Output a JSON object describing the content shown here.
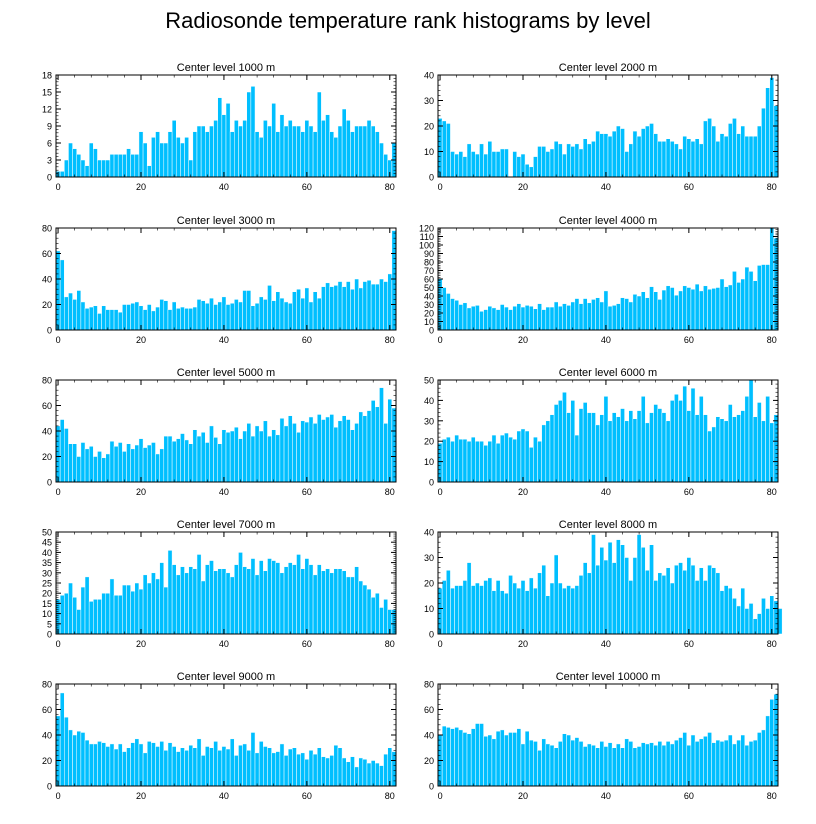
{
  "title": "Radiosonde temperature rank histograms by level",
  "colors": {
    "bar": "#00bfff",
    "bar_edge": "#ffffff",
    "axis": "#000000",
    "text": "#000000"
  },
  "chart_data": [
    {
      "type": "bar",
      "title": "Center level 1000 m",
      "xlim": [
        -0.5,
        81.5
      ],
      "ylim": [
        0,
        18
      ],
      "xticks": [
        0,
        20,
        40,
        60,
        80
      ],
      "yticks": [
        0,
        3,
        6,
        9,
        12,
        15,
        18
      ],
      "values": [
        1,
        1,
        3,
        6,
        5,
        4,
        3,
        2,
        6,
        5,
        3,
        3,
        3,
        4,
        4,
        4,
        4,
        5,
        4,
        4,
        8,
        6,
        2,
        7,
        8,
        6,
        6,
        8,
        10,
        7,
        6,
        7,
        3,
        8,
        9,
        9,
        8,
        9,
        10,
        14,
        11,
        13,
        8,
        10,
        9,
        10,
        15,
        16,
        8,
        7,
        10,
        9,
        13,
        8,
        11,
        9,
        10,
        9,
        9,
        8,
        10,
        9,
        8,
        15,
        10,
        11,
        8,
        7,
        9,
        12,
        10,
        8,
        9,
        9,
        9,
        10,
        9,
        8,
        6,
        4,
        3,
        6
      ],
      "xlabel": "",
      "ylabel": ""
    },
    {
      "type": "bar",
      "title": "Center level 2000 m",
      "xlim": [
        -0.5,
        81.5
      ],
      "ylim": [
        0,
        40
      ],
      "xticks": [
        0,
        20,
        40,
        60,
        80
      ],
      "yticks": [
        0,
        10,
        20,
        30,
        40
      ],
      "values": [
        23,
        22,
        21,
        10,
        9,
        10,
        8,
        13,
        10,
        9,
        13,
        9,
        14,
        10,
        10,
        11,
        11,
        0,
        10,
        8,
        9,
        5,
        4,
        8,
        12,
        12,
        10,
        11,
        14,
        13,
        9,
        13,
        12,
        13,
        11,
        15,
        13,
        14,
        18,
        17,
        17,
        16,
        18,
        20,
        19,
        10,
        13,
        18,
        16,
        19,
        20,
        21,
        17,
        14,
        14,
        15,
        14,
        13,
        11,
        16,
        15,
        14,
        15,
        13,
        22,
        23,
        20,
        14,
        17,
        16,
        21,
        23,
        17,
        20,
        16,
        16,
        16,
        20,
        27,
        35,
        39,
        28
      ],
      "xlabel": "",
      "ylabel": ""
    },
    {
      "type": "bar",
      "title": "Center level 3000 m",
      "xlim": [
        -0.5,
        81.5
      ],
      "ylim": [
        0,
        80
      ],
      "xticks": [
        0,
        20,
        40,
        60,
        80
      ],
      "yticks": [
        0,
        20,
        40,
        60,
        80
      ],
      "values": [
        62,
        55,
        26,
        29,
        24,
        31,
        22,
        17,
        18,
        19,
        13,
        19,
        16,
        16,
        16,
        14,
        20,
        20,
        21,
        22,
        19,
        16,
        20,
        15,
        18,
        24,
        23,
        16,
        22,
        17,
        18,
        17,
        17,
        18,
        24,
        23,
        21,
        25,
        20,
        22,
        26,
        20,
        21,
        24,
        22,
        31,
        31,
        19,
        21,
        26,
        24,
        35,
        23,
        30,
        25,
        22,
        21,
        30,
        32,
        25,
        33,
        22,
        30,
        25,
        34,
        37,
        34,
        35,
        38,
        34,
        38,
        32,
        40,
        33,
        38,
        39,
        36,
        36,
        40,
        38,
        44,
        78
      ],
      "xlabel": "",
      "ylabel": ""
    },
    {
      "type": "bar",
      "title": "Center level 4000 m",
      "xlim": [
        -0.5,
        81.5
      ],
      "ylim": [
        0,
        120
      ],
      "xticks": [
        0,
        20,
        40,
        60,
        80
      ],
      "yticks": [
        0,
        10,
        20,
        30,
        40,
        50,
        60,
        70,
        80,
        90,
        100,
        110,
        120
      ],
      "values": [
        60,
        50,
        43,
        37,
        35,
        30,
        32,
        26,
        28,
        29,
        22,
        24,
        28,
        26,
        24,
        30,
        27,
        24,
        28,
        31,
        27,
        29,
        28,
        25,
        31,
        24,
        27,
        27,
        33,
        28,
        31,
        29,
        33,
        37,
        31,
        37,
        32,
        36,
        38,
        33,
        46,
        28,
        29,
        31,
        38,
        37,
        33,
        42,
        40,
        45,
        38,
        51,
        45,
        36,
        47,
        52,
        50,
        41,
        46,
        52,
        50,
        48,
        54,
        46,
        52,
        48,
        49,
        50,
        60,
        51,
        53,
        69,
        56,
        60,
        74,
        69,
        58,
        76,
        77,
        77,
        120,
        108
      ],
      "xlabel": "",
      "ylabel": ""
    },
    {
      "type": "bar",
      "title": "Center level 5000 m",
      "xlim": [
        -0.5,
        81.5
      ],
      "ylim": [
        0,
        80
      ],
      "xticks": [
        0,
        20,
        40,
        60,
        80
      ],
      "yticks": [
        0,
        20,
        40,
        60,
        80
      ],
      "values": [
        44,
        49,
        42,
        30,
        30,
        20,
        31,
        26,
        28,
        20,
        24,
        19,
        22,
        32,
        28,
        31,
        24,
        30,
        26,
        29,
        34,
        27,
        29,
        31,
        22,
        26,
        36,
        36,
        32,
        34,
        38,
        33,
        30,
        41,
        36,
        39,
        31,
        44,
        35,
        30,
        41,
        39,
        40,
        43,
        34,
        40,
        46,
        36,
        44,
        40,
        48,
        36,
        41,
        37,
        50,
        44,
        52,
        46,
        39,
        48,
        47,
        51,
        46,
        53,
        49,
        51,
        53,
        43,
        48,
        52,
        49,
        41,
        46,
        55,
        52,
        56,
        64,
        59,
        74,
        46,
        65,
        58
      ],
      "xlabel": "",
      "ylabel": ""
    },
    {
      "type": "bar",
      "title": "Center level 6000 m",
      "xlim": [
        -0.5,
        81.5
      ],
      "ylim": [
        0,
        50
      ],
      "xticks": [
        0,
        20,
        40,
        60,
        80
      ],
      "yticks": [
        0,
        10,
        20,
        30,
        40,
        50
      ],
      "values": [
        19,
        21,
        22,
        20,
        23,
        21,
        21,
        20,
        22,
        20,
        20,
        18,
        20,
        23,
        19,
        23,
        24,
        22,
        21,
        25,
        26,
        25,
        17,
        22,
        20,
        28,
        30,
        33,
        38,
        40,
        44,
        34,
        40,
        23,
        36,
        39,
        34,
        34,
        28,
        33,
        42,
        30,
        34,
        32,
        36,
        30,
        35,
        31,
        35,
        42,
        29,
        34,
        38,
        36,
        34,
        30,
        40,
        43,
        40,
        47,
        35,
        46,
        33,
        42,
        33,
        25,
        27,
        32,
        31,
        30,
        38,
        32,
        33,
        35,
        42,
        50,
        32,
        39,
        30,
        42,
        29,
        33
      ],
      "xlabel": "",
      "ylabel": ""
    },
    {
      "type": "bar",
      "title": "Center level 7000 m",
      "xlim": [
        -0.5,
        81.5
      ],
      "ylim": [
        0,
        50
      ],
      "xticks": [
        0,
        20,
        40,
        60,
        80
      ],
      "yticks": [
        0,
        5,
        10,
        15,
        20,
        25,
        30,
        35,
        40,
        45,
        50
      ],
      "values": [
        17,
        19,
        20,
        25,
        18,
        12,
        23,
        28,
        16,
        17,
        17,
        20,
        20,
        27,
        19,
        19,
        24,
        24,
        21,
        25,
        22,
        29,
        25,
        30,
        27,
        35,
        23,
        41,
        34,
        29,
        33,
        30,
        33,
        32,
        39,
        26,
        34,
        36,
        31,
        32,
        32,
        30,
        28,
        34,
        40,
        33,
        32,
        37,
        29,
        36,
        31,
        37,
        36,
        35,
        30,
        33,
        35,
        34,
        39,
        32,
        37,
        34,
        29,
        34,
        31,
        32,
        30,
        32,
        32,
        31,
        28,
        28,
        33,
        26,
        24,
        22,
        18,
        20,
        13,
        17,
        12,
        12
      ],
      "xlabel": "",
      "ylabel": ""
    },
    {
      "type": "bar",
      "title": "Center level 8000 m",
      "xlim": [
        -0.5,
        81.5
      ],
      "ylim": [
        0,
        40
      ],
      "xticks": [
        0,
        20,
        40,
        60,
        80
      ],
      "yticks": [
        0,
        10,
        20,
        30,
        40
      ],
      "values": [
        18,
        21,
        25,
        18,
        19,
        19,
        21,
        28,
        19,
        20,
        19,
        21,
        22,
        17,
        21,
        17,
        16,
        23,
        20,
        18,
        21,
        17,
        22,
        18,
        24,
        27,
        15,
        20,
        31,
        20,
        18,
        19,
        18,
        19,
        23,
        28,
        24,
        39,
        27,
        34,
        29,
        36,
        28,
        37,
        35,
        30,
        21,
        30,
        39,
        34,
        25,
        35,
        21,
        24,
        23,
        26,
        20,
        27,
        28,
        25,
        30,
        27,
        21,
        26,
        21,
        27,
        26,
        24,
        17,
        19,
        18,
        14,
        11,
        18,
        10,
        12,
        6,
        8,
        14,
        10,
        15,
        13,
        10
      ],
      "xlabel": "",
      "ylabel": ""
    },
    {
      "type": "bar",
      "title": "Center level 9000 m",
      "xlim": [
        -0.5,
        81.5
      ],
      "ylim": [
        0,
        80
      ],
      "xticks": [
        0,
        20,
        40,
        60,
        80
      ],
      "yticks": [
        0,
        20,
        40,
        60,
        80
      ],
      "values": [
        55,
        73,
        54,
        44,
        40,
        43,
        42,
        36,
        33,
        33,
        35,
        34,
        31,
        33,
        29,
        33,
        27,
        30,
        34,
        37,
        33,
        26,
        35,
        34,
        31,
        35,
        28,
        34,
        31,
        27,
        30,
        28,
        32,
        30,
        37,
        24,
        31,
        30,
        35,
        28,
        31,
        29,
        37,
        24,
        32,
        33,
        28,
        42,
        26,
        35,
        31,
        30,
        26,
        27,
        33,
        24,
        29,
        30,
        25,
        26,
        21,
        28,
        25,
        30,
        23,
        22,
        24,
        32,
        30,
        22,
        19,
        23,
        15,
        22,
        21,
        18,
        20,
        18,
        16,
        25,
        30,
        27
      ],
      "xlabel": "",
      "ylabel": ""
    },
    {
      "type": "bar",
      "title": "Center level 10000 m",
      "xlim": [
        -0.5,
        81.5
      ],
      "ylim": [
        0,
        80
      ],
      "xticks": [
        0,
        20,
        40,
        60,
        80
      ],
      "yticks": [
        0,
        20,
        40,
        60,
        80
      ],
      "values": [
        40,
        47,
        46,
        45,
        46,
        44,
        42,
        41,
        45,
        49,
        49,
        39,
        40,
        37,
        43,
        44,
        40,
        42,
        42,
        45,
        33,
        43,
        36,
        35,
        28,
        37,
        33,
        32,
        30,
        35,
        41,
        40,
        36,
        38,
        35,
        31,
        33,
        32,
        30,
        35,
        31,
        34,
        30,
        33,
        30,
        37,
        35,
        30,
        31,
        34,
        33,
        34,
        32,
        35,
        32,
        35,
        33,
        36,
        38,
        42,
        32,
        40,
        35,
        37,
        39,
        42,
        34,
        36,
        35,
        36,
        40,
        33,
        36,
        40,
        32,
        35,
        36,
        42,
        44,
        55,
        68,
        72
      ],
      "xlabel": "",
      "ylabel": ""
    }
  ]
}
